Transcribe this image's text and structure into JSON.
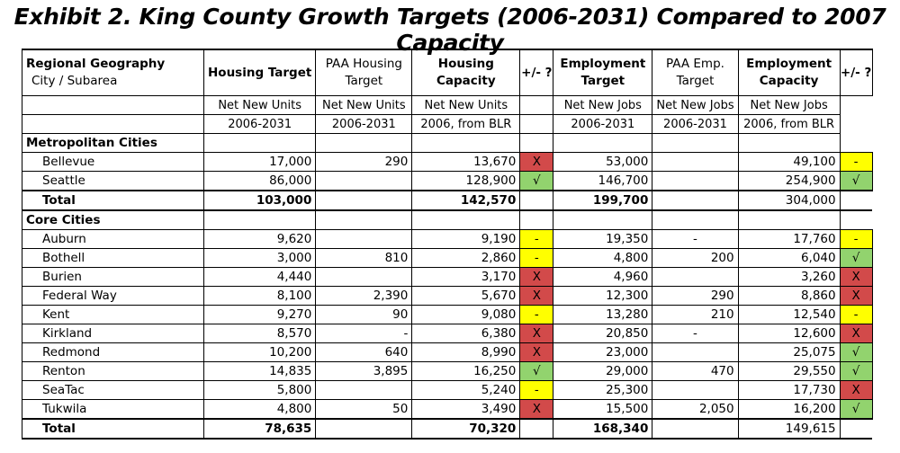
{
  "title": "Exhibit 2. King County Growth Targets (2006-2031) Compared to 2007 Capacity",
  "headers": {
    "geo": "Regional Geography",
    "geo_sub": "City / Subarea",
    "ht": "Housing Target",
    "paah": "PAA Housing Target",
    "hc": "Housing Capacity",
    "pm1": "+/- ?",
    "et": "Employment Target",
    "paae": "PAA Emp. Target",
    "ec": "Employment Capacity",
    "pm2": "+/- ?"
  },
  "units": [
    "Net New Units",
    "Net New Units",
    "Net New Units",
    "Net New Jobs",
    "Net New Jobs",
    "Net New Jobs"
  ],
  "years": [
    "2006-2031",
    "2006-2031",
    "2006, from BLR",
    "2006-2031",
    "2006-2031",
    "2006, from BLR"
  ],
  "flag_colors": {
    "X": "#d24a4a",
    "√": "#92d36e",
    "-": "#ffff00"
  },
  "sections": [
    {
      "name": "Metropolitan Cities",
      "rows": [
        [
          "Bellevue",
          "17,000",
          "290",
          "13,670",
          "X",
          "53,000",
          "",
          "49,100",
          "-"
        ],
        [
          "Seattle",
          "86,000",
          "",
          "128,900",
          "√",
          "146,700",
          "",
          "254,900",
          "√"
        ]
      ],
      "total": [
        "Total",
        "103,000",
        "",
        "142,570",
        "",
        "199,700",
        "",
        "304,000",
        ""
      ]
    },
    {
      "name": "Core Cities",
      "rows": [
        [
          "Auburn",
          "9,620",
          "",
          "9,190",
          "-",
          "19,350",
          "-",
          "17,760",
          "-"
        ],
        [
          "Bothell",
          "3,000",
          "810",
          "2,860",
          "-",
          "4,800",
          "200",
          "6,040",
          "√"
        ],
        [
          "Burien",
          "4,440",
          "",
          "3,170",
          "X",
          "4,960",
          "",
          "3,260",
          "X"
        ],
        [
          "Federal Way",
          "8,100",
          "2,390",
          "5,670",
          "X",
          "12,300",
          "290",
          "8,860",
          "X"
        ],
        [
          "Kent",
          "9,270",
          "90",
          "9,080",
          "-",
          "13,280",
          "210",
          "12,540",
          "-"
        ],
        [
          "Kirkland",
          "8,570",
          "-",
          "6,380",
          "X",
          "20,850",
          "-",
          "12,600",
          "X"
        ],
        [
          "Redmond",
          "10,200",
          "640",
          "8,990",
          "X",
          "23,000",
          "",
          "25,075",
          "√"
        ],
        [
          "Renton",
          "14,835",
          "3,895",
          "16,250",
          "√",
          "29,000",
          "470",
          "29,550",
          "√"
        ],
        [
          "SeaTac",
          "5,800",
          "",
          "5,240",
          "-",
          "25,300",
          "",
          "17,730",
          "X"
        ],
        [
          "Tukwila",
          "4,800",
          "50",
          "3,490",
          "X",
          "15,500",
          "2,050",
          "16,200",
          "√"
        ]
      ],
      "total": [
        "Total",
        "78,635",
        "",
        "70,320",
        "",
        "168,340",
        "",
        "149,615",
        ""
      ]
    }
  ]
}
